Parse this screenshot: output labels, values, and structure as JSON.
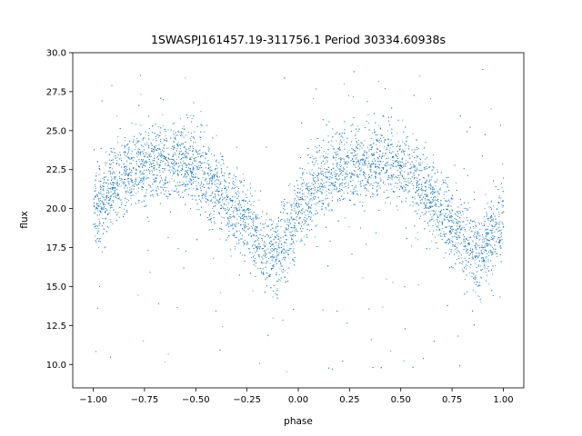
{
  "chart_data": {
    "type": "scatter",
    "title": "1SWASPJ161457.19-311756.1 Period 30334.60938s",
    "xlabel": "phase",
    "ylabel": "flux",
    "xlim": [
      -1.1,
      1.1
    ],
    "ylim": [
      8.5,
      30.0
    ],
    "xticks": [
      -1.0,
      -0.75,
      -0.5,
      -0.25,
      0.0,
      0.25,
      0.5,
      0.75,
      1.0
    ],
    "xtick_labels": [
      "−1.00",
      "−0.75",
      "−0.50",
      "−0.25",
      "0.00",
      "0.25",
      "0.50",
      "0.75",
      "1.00"
    ],
    "yticks": [
      10.0,
      12.5,
      15.0,
      17.5,
      20.0,
      22.5,
      25.0,
      27.5,
      30.0
    ],
    "ytick_labels": [
      "10.0",
      "12.5",
      "15.0",
      "17.5",
      "20.0",
      "22.5",
      "25.0",
      "27.5",
      "30.0"
    ],
    "grid": false,
    "legend": "none",
    "marker_color": "#1f77b4",
    "series": [
      {
        "description": "folded light curve, phase range -1 to 1, periodic with maxima near phase -0.65 and 0.35, minima near -0.15 and 0.85",
        "points": [
          [
            -1.0,
            19.5
          ],
          [
            -0.95,
            20.6
          ],
          [
            -0.9,
            21.7
          ],
          [
            -0.85,
            22.2
          ],
          [
            -0.8,
            22.6
          ],
          [
            -0.75,
            22.8
          ],
          [
            -0.7,
            23.0
          ],
          [
            -0.65,
            23.1
          ],
          [
            -0.6,
            23.2
          ],
          [
            -0.55,
            23.0
          ],
          [
            -0.5,
            22.6
          ],
          [
            -0.45,
            22.0
          ],
          [
            -0.4,
            21.3
          ],
          [
            -0.35,
            20.6
          ],
          [
            -0.3,
            19.8
          ],
          [
            -0.25,
            19.0
          ],
          [
            -0.2,
            18.0
          ],
          [
            -0.15,
            17.2
          ],
          [
            -0.1,
            17.3
          ],
          [
            -0.05,
            18.4
          ],
          [
            0.0,
            19.5
          ],
          [
            0.05,
            20.6
          ],
          [
            0.1,
            21.7
          ],
          [
            0.15,
            22.2
          ],
          [
            0.2,
            22.6
          ],
          [
            0.25,
            22.8
          ],
          [
            0.3,
            23.0
          ],
          [
            0.35,
            23.1
          ],
          [
            0.4,
            23.2
          ],
          [
            0.45,
            23.0
          ],
          [
            0.5,
            22.6
          ],
          [
            0.55,
            22.0
          ],
          [
            0.6,
            21.3
          ],
          [
            0.65,
            20.6
          ],
          [
            0.7,
            19.8
          ],
          [
            0.75,
            19.0
          ],
          [
            0.8,
            18.0
          ],
          [
            0.85,
            17.2
          ],
          [
            0.9,
            17.3
          ],
          [
            0.95,
            18.4
          ],
          [
            1.0,
            19.5
          ]
        ]
      }
    ]
  }
}
